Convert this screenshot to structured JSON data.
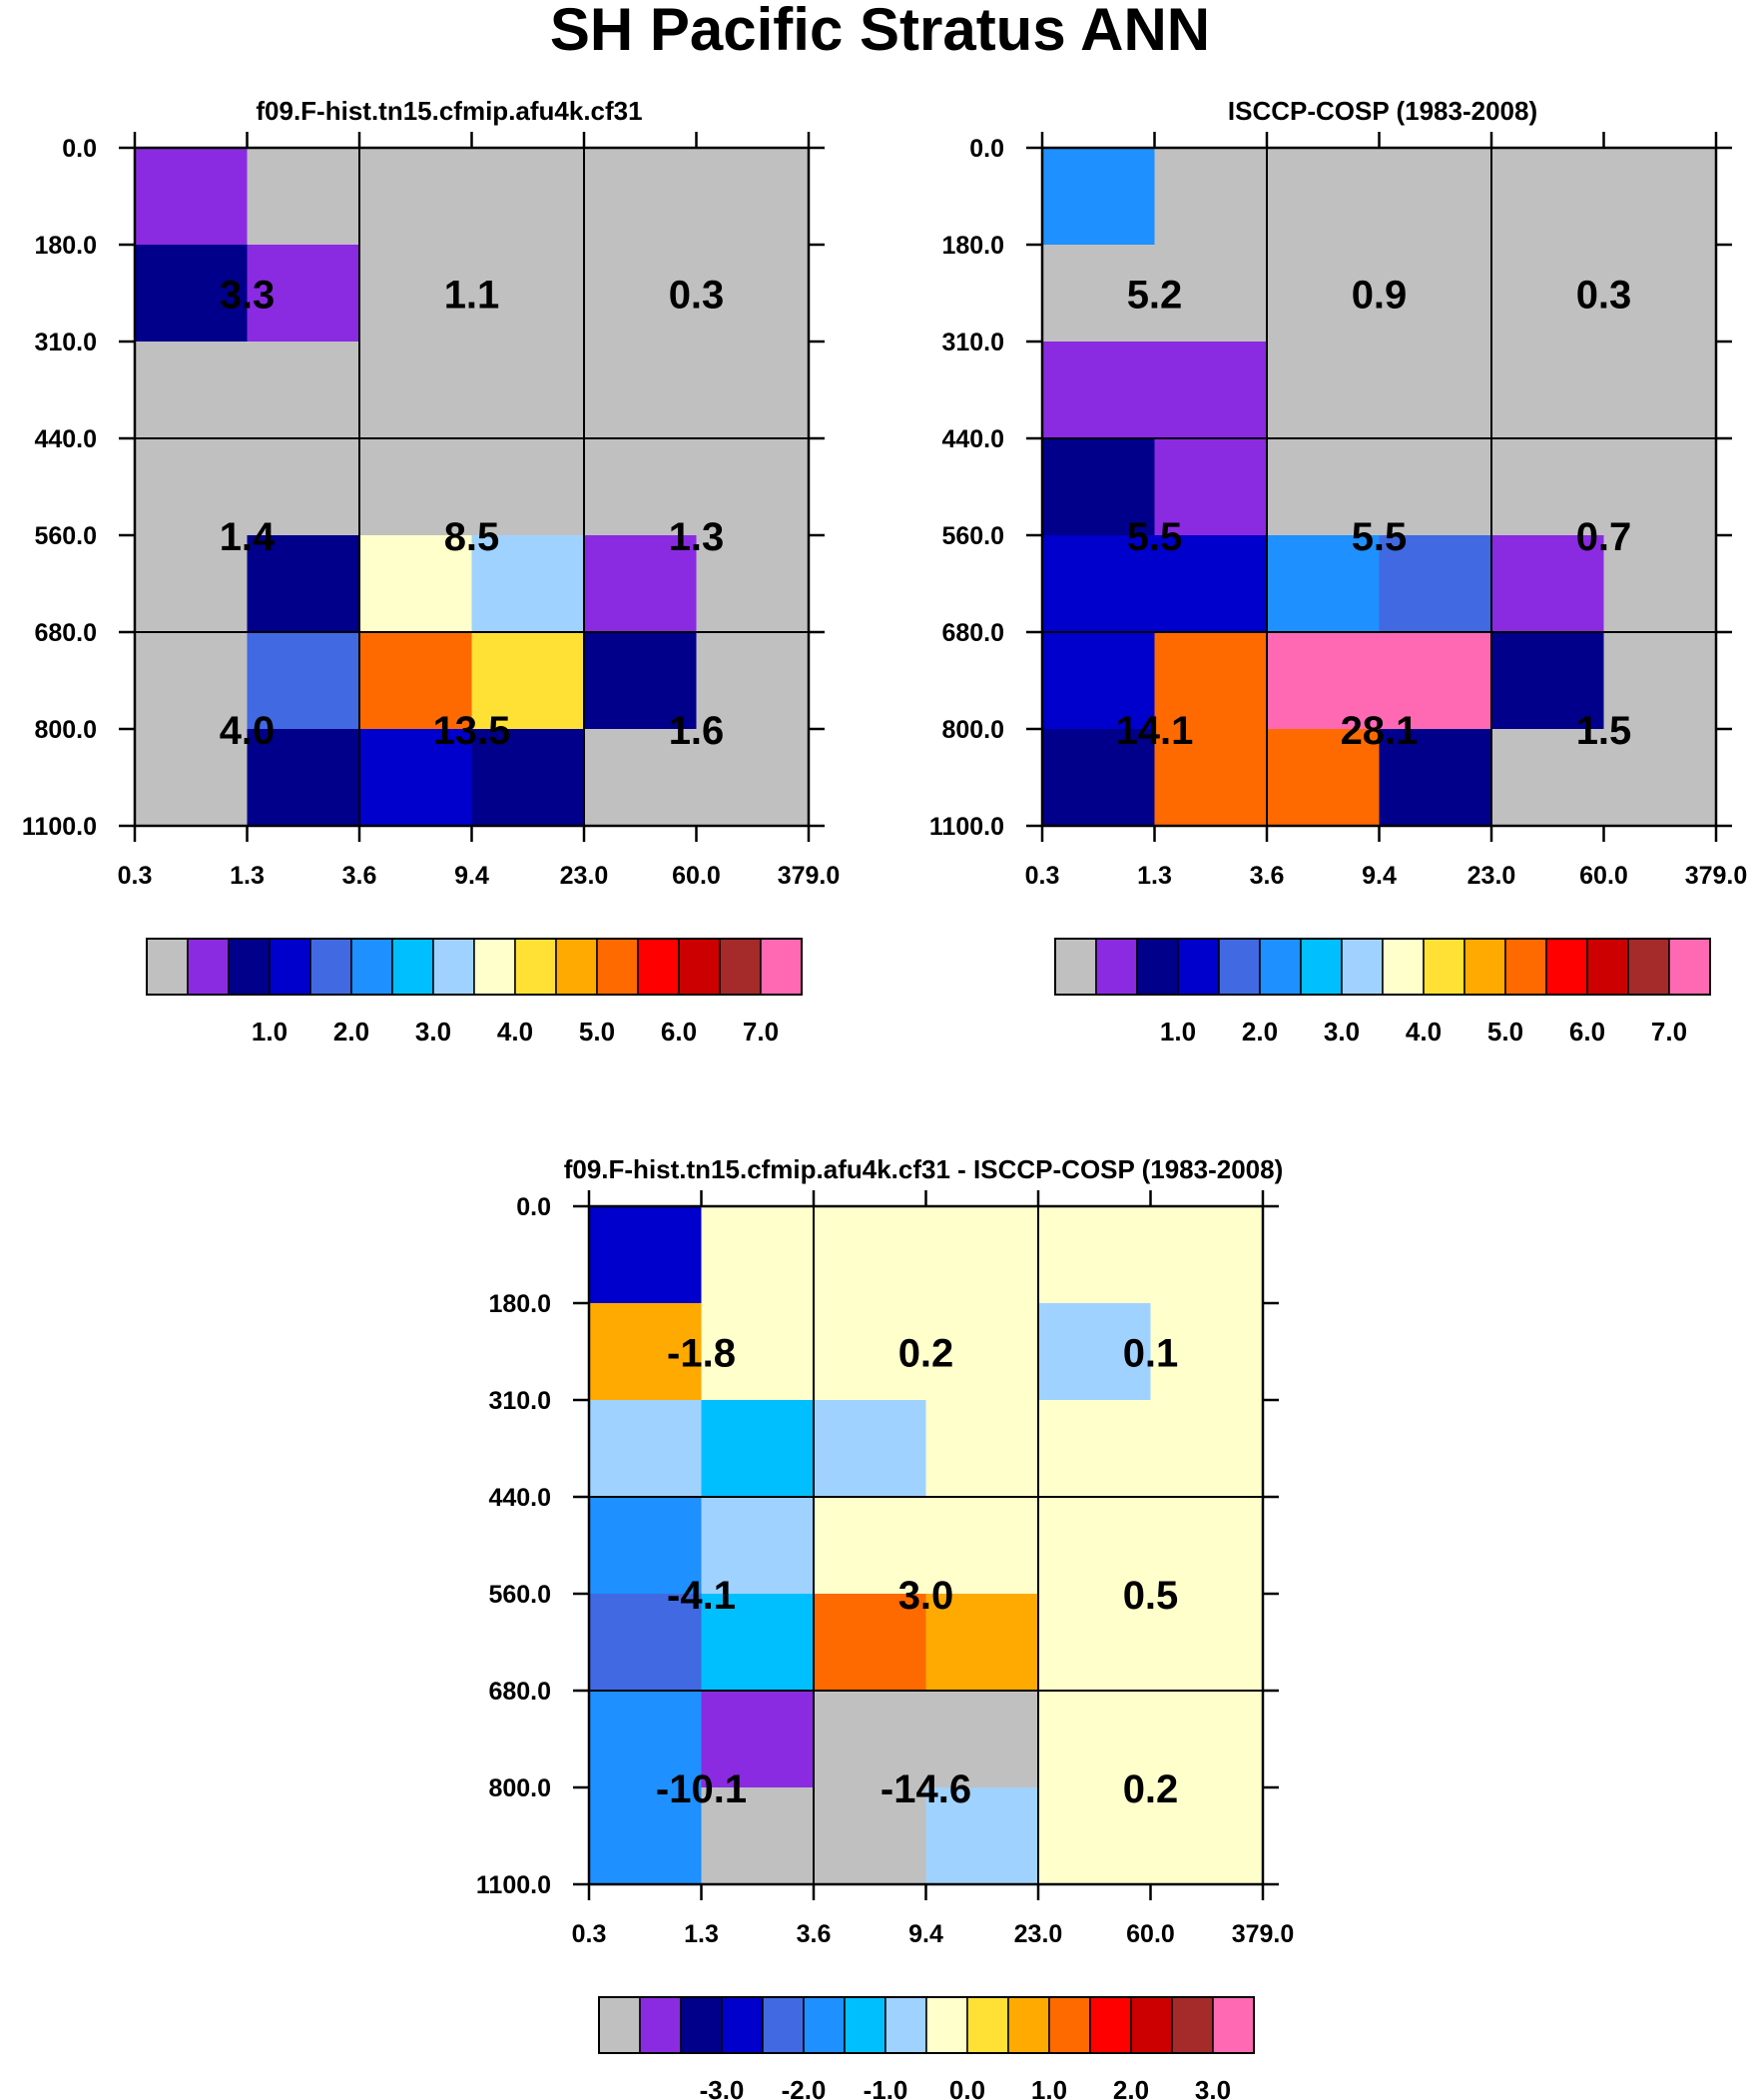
{
  "title": "SH Pacific Stratus ANN",
  "x_ticks": [
    "0.3",
    "1.3",
    "3.6",
    "9.4",
    "23.0",
    "60.0",
    "379.0"
  ],
  "y_ticks": [
    "0.0",
    "180.0",
    "310.0",
    "440.0",
    "560.0",
    "680.0",
    "800.0",
    "1100.0"
  ],
  "colorbar": {
    "colors": [
      "#c0c0c0",
      "#8a2be2",
      "#00008b",
      "#0000cd",
      "#4169e1",
      "#1e90ff",
      "#00bfff",
      "#a0d2ff",
      "#ffffcc",
      "#ffe135",
      "#ffaa00",
      "#ff6a00",
      "#ff0000",
      "#cd0000",
      "#a52a2a",
      "#ff69b4"
    ],
    "abs_labels": [
      "1.0",
      "2.0",
      "3.0",
      "4.0",
      "5.0",
      "6.0",
      "7.0"
    ],
    "diff_labels": [
      "-3.0",
      "-2.0",
      "-1.0",
      "0.0",
      "1.0",
      "2.0",
      "3.0"
    ]
  },
  "chart_data": [
    {
      "type": "heatmap",
      "title": "f09.F-hist.tn15.cfmip.afu4k.cf31",
      "x_ticks": [
        "0.3",
        "1.3",
        "3.6",
        "9.4",
        "23.0",
        "60.0",
        "379.0"
      ],
      "y_ticks": [
        "0.0",
        "180.0",
        "310.0",
        "440.0",
        "560.0",
        "680.0",
        "800.0",
        "1100.0"
      ],
      "cell_color_index": [
        [
          1,
          0,
          0,
          0,
          0,
          0
        ],
        [
          2,
          1,
          0,
          0,
          0,
          0
        ],
        [
          0,
          0,
          0,
          0,
          0,
          0
        ],
        [
          0,
          0,
          0,
          0,
          0,
          0
        ],
        [
          0,
          2,
          8,
          7,
          1,
          0
        ],
        [
          0,
          4,
          11,
          9,
          2,
          0
        ],
        [
          0,
          2,
          3,
          2,
          0,
          0
        ]
      ],
      "box_values": [
        [
          "3.3",
          "1.1",
          "0.3"
        ],
        [
          "1.4",
          "8.5",
          "1.3"
        ],
        [
          "4.0",
          "13.5",
          "1.6"
        ]
      ]
    },
    {
      "type": "heatmap",
      "title": "ISCCP-COSP (1983-2008)",
      "x_ticks": [
        "0.3",
        "1.3",
        "3.6",
        "9.4",
        "23.0",
        "60.0",
        "379.0"
      ],
      "y_ticks": [
        "0.0",
        "180.0",
        "310.0",
        "440.0",
        "560.0",
        "680.0",
        "800.0",
        "1100.0"
      ],
      "cell_color_index": [
        [
          5,
          0,
          0,
          0,
          0,
          0
        ],
        [
          0,
          0,
          0,
          0,
          0,
          0
        ],
        [
          1,
          1,
          0,
          0,
          0,
          0
        ],
        [
          2,
          1,
          0,
          0,
          0,
          0
        ],
        [
          3,
          3,
          5,
          4,
          1,
          0
        ],
        [
          3,
          11,
          15,
          15,
          2,
          0
        ],
        [
          2,
          11,
          11,
          2,
          0,
          0
        ]
      ],
      "box_values": [
        [
          "5.2",
          "0.9",
          "0.3"
        ],
        [
          "5.5",
          "5.5",
          "0.7"
        ],
        [
          "14.1",
          "28.1",
          "1.5"
        ]
      ]
    },
    {
      "type": "heatmap",
      "title": "f09.F-hist.tn15.cfmip.afu4k.cf31 - ISCCP-COSP (1983-2008)",
      "x_ticks": [
        "0.3",
        "1.3",
        "3.6",
        "9.4",
        "23.0",
        "60.0",
        "379.0"
      ],
      "y_ticks": [
        "0.0",
        "180.0",
        "310.0",
        "440.0",
        "560.0",
        "680.0",
        "800.0",
        "1100.0"
      ],
      "cell_color_index": [
        [
          3,
          8,
          8,
          8,
          8,
          8
        ],
        [
          10,
          8,
          8,
          8,
          7,
          8
        ],
        [
          7,
          6,
          7,
          8,
          8,
          8
        ],
        [
          5,
          7,
          8,
          8,
          8,
          8
        ],
        [
          4,
          6,
          11,
          10,
          8,
          8
        ],
        [
          5,
          1,
          0,
          0,
          8,
          8
        ],
        [
          5,
          0,
          0,
          7,
          8,
          8
        ]
      ],
      "box_values": [
        [
          "-1.8",
          "0.2",
          "0.1"
        ],
        [
          "-4.1",
          "3.0",
          "0.5"
        ],
        [
          "-10.1",
          "-14.6",
          "0.2"
        ]
      ]
    }
  ]
}
